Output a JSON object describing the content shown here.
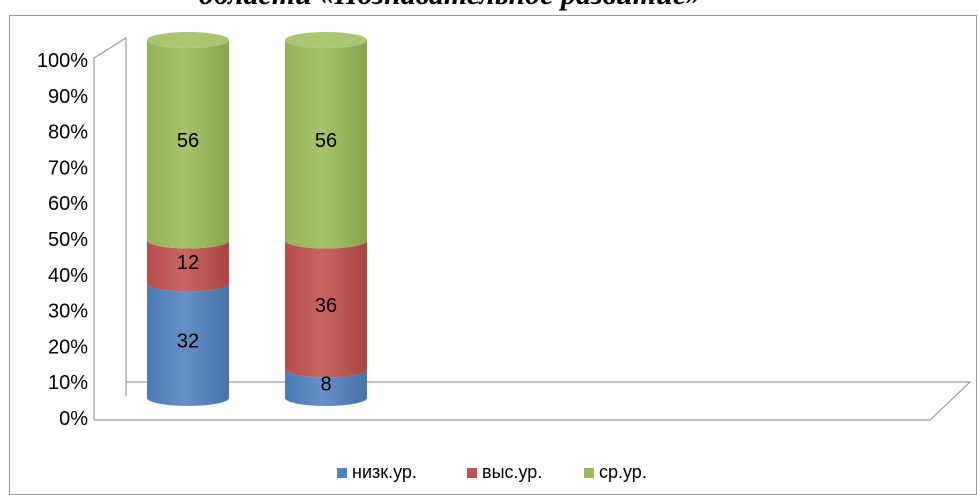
{
  "title": "области «Познавательное развитие»",
  "colors": {
    "low": "#4f81bd",
    "high": "#c0504d",
    "mid": "#9bbb59",
    "frame": "#9a9a9a"
  },
  "chart_data": {
    "type": "bar",
    "stacked": true,
    "percent_stacked": true,
    "three_d": true,
    "shape": "cylinder",
    "title": "области «Познавательное развитие»",
    "categories": [
      "",
      ""
    ],
    "series": [
      {
        "name": "низк.ур.",
        "values": [
          32,
          8
        ]
      },
      {
        "name": "выс.ур.",
        "values": [
          12,
          36
        ]
      },
      {
        "name": "ср.ур.",
        "values": [
          56,
          56
        ]
      }
    ],
    "ylim": [
      0,
      100
    ],
    "y_ticks": [
      "0%",
      "10%",
      "20%",
      "30%",
      "40%",
      "50%",
      "60%",
      "70%",
      "80%",
      "90%",
      "100%"
    ],
    "legend_position": "bottom",
    "grid": false
  }
}
